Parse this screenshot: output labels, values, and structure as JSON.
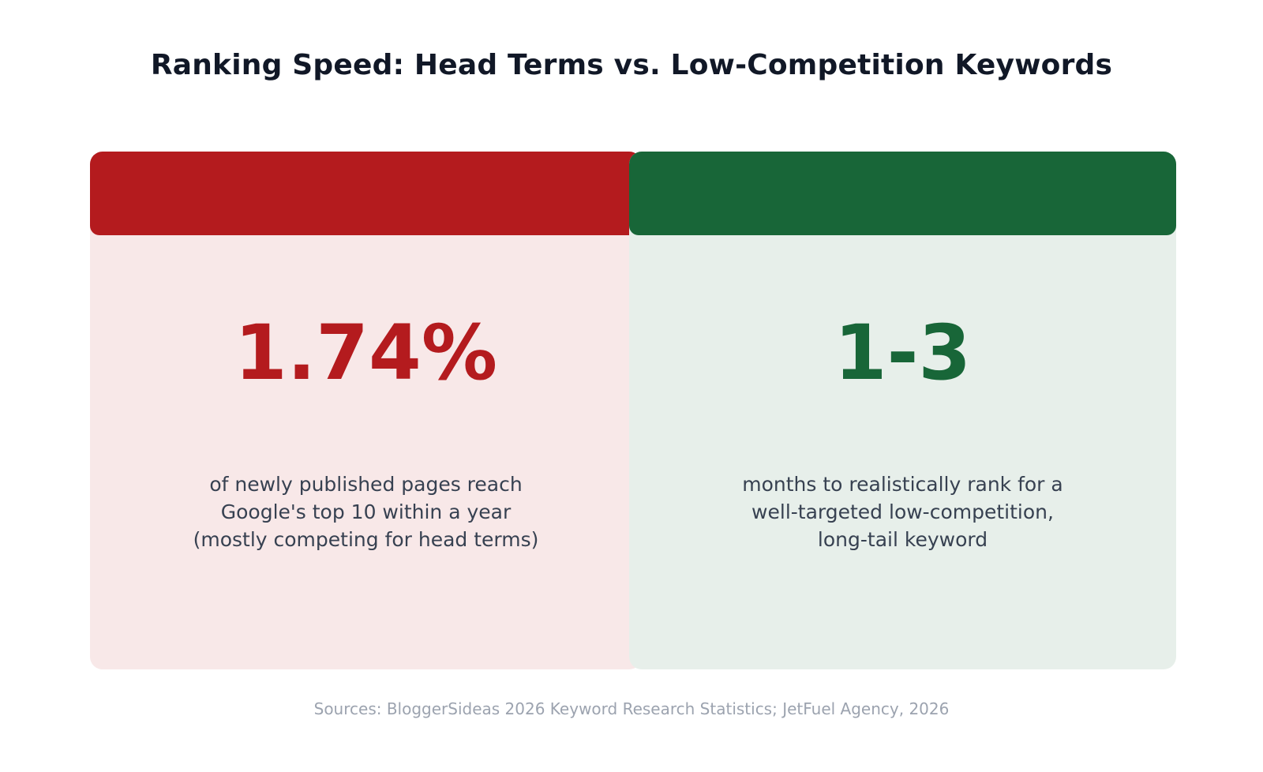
{
  "title": "Ranking Speed: Head Terms vs. Low-Competition Keywords",
  "cards": [
    {
      "stat": "1.74%",
      "description_lines": [
        "of newly published pages reach",
        "Google's top 10 within a year",
        "(mostly competing for head terms)"
      ],
      "accent_color": "#b41b1e",
      "background_color": "#f8e8e8"
    },
    {
      "stat": "1-3",
      "description_lines": [
        "months to realistically rank for a",
        "well-targeted low-competition,",
        "long-tail keyword"
      ],
      "accent_color": "#186638",
      "background_color": "#e7efea"
    }
  ],
  "source": "Sources: BloggerSideas 2026 Keyword Research Statistics; JetFuel Agency, 2026"
}
